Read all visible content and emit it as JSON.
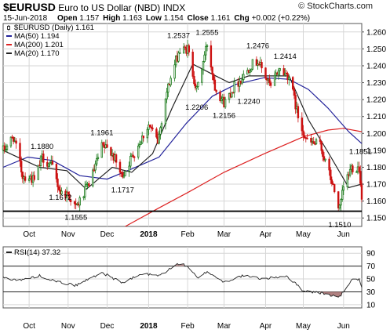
{
  "header": {
    "symbol": "$EURUSD",
    "name": "Euro to US Dollar (NBD)",
    "exchange": "INDX",
    "date": "15-Jun-2018",
    "copyright": "© StockCharts.com",
    "ohlc": {
      "open_label": "Open",
      "open": "1.157",
      "high_label": "High",
      "high": "1.163",
      "low_label": "Low",
      "low": "1.154",
      "close_label": "Close",
      "close": "1.161",
      "chg_label": "Chg",
      "chg": "+0.002 (+0.22%)"
    }
  },
  "colors": {
    "up": "#1a7a1a",
    "down": "#cc1111",
    "ma50": "#22229a",
    "ma200": "#dd2222",
    "ma20": "#222222",
    "rsi_line": "#222222",
    "rsi_fill_high": "#c8a0a0",
    "rsi_fill_low": "#b08080",
    "grid": "#d6d6d6"
  },
  "chart_data": [
    {
      "type": "candlestick",
      "title": "$EURUSD (Daily) 1.161",
      "legend": [
        {
          "label": "$EURUSD (Daily) 1.161",
          "icon": "candle-icon"
        },
        {
          "label": "MA(50) 1.194",
          "color": "#22229a"
        },
        {
          "label": "MA(200) 1.201",
          "color": "#dd2222"
        },
        {
          "label": "MA(20) 1.170",
          "color": "#222222"
        }
      ],
      "legend_position": "top-left",
      "grid": true,
      "yaxis_side": "right",
      "ylim": [
        1.145,
        1.265
      ],
      "yticks": [
        "1.260",
        "1.250",
        "1.240",
        "1.230",
        "1.220",
        "1.210",
        "1.200",
        "1.190",
        "1.180",
        "1.170",
        "1.160",
        "1.150"
      ],
      "xticks": [
        "Oct",
        "Nov",
        "Dec",
        "2018",
        "Feb",
        "Mar",
        "Apr",
        "May",
        "Jun"
      ],
      "xtick_dates": [
        "2017-10-02",
        "2017-11-01",
        "2017-12-01",
        "2018-01-02",
        "2018-02-01",
        "2018-03-01",
        "2018-04-02",
        "2018-05-01",
        "2018-06-01"
      ],
      "xlim_dates": [
        "2017-09-12",
        "2018-06-15"
      ],
      "waypoints": [
        {
          "date": "2017-09-12",
          "v": 1.19
        },
        {
          "date": "2017-09-20",
          "v": 1.198
        },
        {
          "date": "2017-09-27",
          "v": 1.175
        },
        {
          "date": "2017-10-03",
          "v": 1.174
        },
        {
          "date": "2017-10-06",
          "v": 1.172
        },
        {
          "date": "2017-10-12",
          "v": 1.186
        },
        {
          "date": "2017-10-20",
          "v": 1.18
        },
        {
          "date": "2017-10-26",
          "v": 1.165
        },
        {
          "date": "2017-11-01",
          "v": 1.164
        },
        {
          "date": "2017-11-07",
          "v": 1.156
        },
        {
          "date": "2017-11-13",
          "v": 1.164
        },
        {
          "date": "2017-11-20",
          "v": 1.176
        },
        {
          "date": "2017-11-27",
          "v": 1.192
        },
        {
          "date": "2017-12-04",
          "v": 1.19
        },
        {
          "date": "2017-12-12",
          "v": 1.175
        },
        {
          "date": "2017-12-14",
          "v": 1.177
        },
        {
          "date": "2017-12-20",
          "v": 1.186
        },
        {
          "date": "2018-01-02",
          "v": 1.205
        },
        {
          "date": "2018-01-09",
          "v": 1.195
        },
        {
          "date": "2018-01-16",
          "v": 1.225
        },
        {
          "date": "2018-01-25",
          "v": 1.248
        },
        {
          "date": "2018-02-01",
          "v": 1.25
        },
        {
          "date": "2018-02-08",
          "v": 1.225
        },
        {
          "date": "2018-02-16",
          "v": 1.253
        },
        {
          "date": "2018-02-22",
          "v": 1.228
        },
        {
          "date": "2018-03-01",
          "v": 1.218
        },
        {
          "date": "2018-03-09",
          "v": 1.228
        },
        {
          "date": "2018-03-15",
          "v": 1.233
        },
        {
          "date": "2018-03-21",
          "v": 1.24
        },
        {
          "date": "2018-03-27",
          "v": 1.243
        },
        {
          "date": "2018-04-06",
          "v": 1.227
        },
        {
          "date": "2018-04-12",
          "v": 1.238
        },
        {
          "date": "2018-04-20",
          "v": 1.234
        },
        {
          "date": "2018-04-27",
          "v": 1.21
        },
        {
          "date": "2018-05-04",
          "v": 1.195
        },
        {
          "date": "2018-05-14",
          "v": 1.193
        },
        {
          "date": "2018-05-21",
          "v": 1.176
        },
        {
          "date": "2018-05-29",
          "v": 1.155
        },
        {
          "date": "2018-06-01",
          "v": 1.168
        },
        {
          "date": "2018-06-07",
          "v": 1.18
        },
        {
          "date": "2018-06-13",
          "v": 1.18
        },
        {
          "date": "2018-06-15",
          "v": 1.161
        }
      ],
      "ma50": [
        {
          "date": "2017-09-12",
          "v": 1.18
        },
        {
          "date": "2017-10-01",
          "v": 1.186
        },
        {
          "date": "2017-10-20",
          "v": 1.184
        },
        {
          "date": "2017-11-10",
          "v": 1.175
        },
        {
          "date": "2017-12-01",
          "v": 1.173
        },
        {
          "date": "2017-12-20",
          "v": 1.179
        },
        {
          "date": "2018-01-10",
          "v": 1.186
        },
        {
          "date": "2018-01-31",
          "v": 1.206
        },
        {
          "date": "2018-02-20",
          "v": 1.222
        },
        {
          "date": "2018-03-10",
          "v": 1.229
        },
        {
          "date": "2018-04-01",
          "v": 1.233
        },
        {
          "date": "2018-04-20",
          "v": 1.232
        },
        {
          "date": "2018-05-05",
          "v": 1.226
        },
        {
          "date": "2018-05-20",
          "v": 1.215
        },
        {
          "date": "2018-06-05",
          "v": 1.201
        },
        {
          "date": "2018-06-15",
          "v": 1.194
        }
      ],
      "ma200": [
        {
          "date": "2017-12-15",
          "v": 1.145
        },
        {
          "date": "2018-01-10",
          "v": 1.156
        },
        {
          "date": "2018-02-01",
          "v": 1.165
        },
        {
          "date": "2018-03-01",
          "v": 1.177
        },
        {
          "date": "2018-04-01",
          "v": 1.188
        },
        {
          "date": "2018-05-01",
          "v": 1.198
        },
        {
          "date": "2018-05-20",
          "v": 1.202
        },
        {
          "date": "2018-06-01",
          "v": 1.203
        },
        {
          "date": "2018-06-15",
          "v": 1.201
        }
      ],
      "ma20": [
        {
          "date": "2017-09-12",
          "v": 1.19
        },
        {
          "date": "2017-10-10",
          "v": 1.18
        },
        {
          "date": "2017-10-31",
          "v": 1.178
        },
        {
          "date": "2017-11-15",
          "v": 1.167
        },
        {
          "date": "2017-12-05",
          "v": 1.18
        },
        {
          "date": "2017-12-20",
          "v": 1.177
        },
        {
          "date": "2018-01-05",
          "v": 1.188
        },
        {
          "date": "2018-01-20",
          "v": 1.215
        },
        {
          "date": "2018-02-05",
          "v": 1.241
        },
        {
          "date": "2018-02-20",
          "v": 1.235
        },
        {
          "date": "2018-03-05",
          "v": 1.23
        },
        {
          "date": "2018-03-20",
          "v": 1.234
        },
        {
          "date": "2018-04-05",
          "v": 1.234
        },
        {
          "date": "2018-04-20",
          "v": 1.234
        },
        {
          "date": "2018-05-05",
          "v": 1.208
        },
        {
          "date": "2018-05-20",
          "v": 1.189
        },
        {
          "date": "2018-06-05",
          "v": 1.168
        },
        {
          "date": "2018-06-15",
          "v": 1.17
        }
      ],
      "support_level": 1.154,
      "annotations": [
        {
          "text": "1.1880",
          "date": "2017-10-12",
          "v": 1.188,
          "pos": "above"
        },
        {
          "text": "1.1672",
          "date": "2017-10-26",
          "v": 1.1672,
          "pos": "below"
        },
        {
          "text": "1.1555",
          "date": "2017-11-07",
          "v": 1.1555,
          "pos": "below"
        },
        {
          "text": "1.1961",
          "date": "2017-11-27",
          "v": 1.1961,
          "pos": "above"
        },
        {
          "text": "1.1717",
          "date": "2017-12-13",
          "v": 1.1717,
          "pos": "below"
        },
        {
          "text": "1.2537",
          "date": "2018-01-25",
          "v": 1.2537,
          "pos": "above"
        },
        {
          "text": "1.2555",
          "date": "2018-02-16",
          "v": 1.2555,
          "pos": "above"
        },
        {
          "text": "1.2206",
          "date": "2018-02-08",
          "v": 1.2206,
          "pos": "below"
        },
        {
          "text": "1.2156",
          "date": "2018-03-01",
          "v": 1.2156,
          "pos": "below"
        },
        {
          "text": "1.2476",
          "date": "2018-03-27",
          "v": 1.2476,
          "pos": "above"
        },
        {
          "text": "1.2240",
          "date": "2018-03-20",
          "v": 1.224,
          "pos": "below"
        },
        {
          "text": "1.2414",
          "date": "2018-04-17",
          "v": 1.2414,
          "pos": "above"
        },
        {
          "text": "1.1851",
          "date": "2018-06-14",
          "v": 1.1851,
          "pos": "above"
        },
        {
          "text": "1.1510",
          "date": "2018-05-29",
          "v": 1.151,
          "pos": "below"
        }
      ]
    },
    {
      "type": "line",
      "title": "RSI(14) 37.32",
      "legend_position": "top-left",
      "grid": true,
      "ylim": [
        5,
        100
      ],
      "yticks": [
        "90",
        "70",
        "50",
        "30",
        "10"
      ],
      "reference_lines": [
        70,
        30
      ],
      "xticks": [
        "Oct",
        "Nov",
        "Dec",
        "2018",
        "Feb",
        "Mar",
        "Apr",
        "May",
        "Jun"
      ],
      "series": [
        {
          "points": [
            {
              "date": "2017-09-12",
              "v": 52
            },
            {
              "date": "2017-09-25",
              "v": 48
            },
            {
              "date": "2017-10-10",
              "v": 55
            },
            {
              "date": "2017-10-25",
              "v": 45
            },
            {
              "date": "2017-11-07",
              "v": 40
            },
            {
              "date": "2017-11-27",
              "v": 60
            },
            {
              "date": "2017-12-13",
              "v": 44
            },
            {
              "date": "2017-12-28",
              "v": 58
            },
            {
              "date": "2018-01-10",
              "v": 55
            },
            {
              "date": "2018-01-25",
              "v": 74
            },
            {
              "date": "2018-02-01",
              "v": 70
            },
            {
              "date": "2018-02-09",
              "v": 50
            },
            {
              "date": "2018-02-16",
              "v": 62
            },
            {
              "date": "2018-03-01",
              "v": 45
            },
            {
              "date": "2018-03-15",
              "v": 55
            },
            {
              "date": "2018-04-01",
              "v": 50
            },
            {
              "date": "2018-04-18",
              "v": 55
            },
            {
              "date": "2018-05-01",
              "v": 32
            },
            {
              "date": "2018-05-15",
              "v": 28
            },
            {
              "date": "2018-05-29",
              "v": 22
            },
            {
              "date": "2018-06-07",
              "v": 48
            },
            {
              "date": "2018-06-13",
              "v": 50
            },
            {
              "date": "2018-06-15",
              "v": 37
            }
          ]
        }
      ]
    }
  ]
}
